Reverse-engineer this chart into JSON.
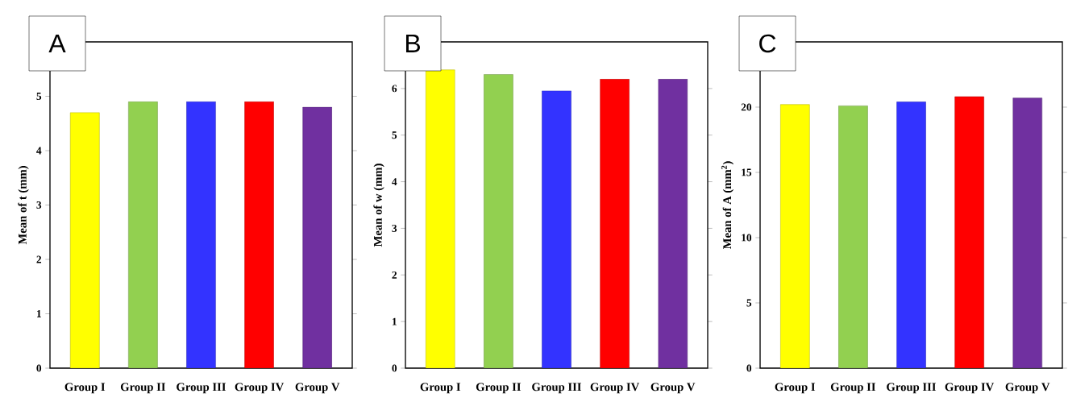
{
  "chart_data": [
    {
      "type": "bar",
      "title": "A",
      "ylabel": "Mean of t (mm)",
      "categories": [
        "Group I",
        "Group II",
        "Group III",
        "Group IV",
        "Group V"
      ],
      "values": [
        4.7,
        4.9,
        4.9,
        4.9,
        4.8
      ],
      "colors": [
        "#ffff00",
        "#92d050",
        "#3333ff",
        "#ff0000",
        "#7030a0"
      ],
      "ylim": [
        0,
        6
      ],
      "yticks": [
        0,
        1,
        2,
        3,
        4,
        5
      ]
    },
    {
      "type": "bar",
      "title": "B",
      "ylabel": "Mean of w (mm)",
      "categories": [
        "Group I",
        "Group II",
        "Group III",
        "Group IV",
        "Group V"
      ],
      "values": [
        6.4,
        6.3,
        5.95,
        6.2,
        6.2
      ],
      "colors": [
        "#ffff00",
        "#92d050",
        "#3333ff",
        "#ff0000",
        "#7030a0"
      ],
      "ylim": [
        0,
        7
      ],
      "yticks": [
        0,
        1,
        2,
        3,
        4,
        5,
        6
      ]
    },
    {
      "type": "bar",
      "title": "C",
      "ylabel": "Mean of A (mm$^{2}$)",
      "categories": [
        "Group I",
        "Group II",
        "Group III",
        "Group IV",
        "Group V"
      ],
      "values": [
        20.2,
        20.1,
        20.4,
        20.8,
        20.7
      ],
      "colors": [
        "#ffff00",
        "#92d050",
        "#3333ff",
        "#ff0000",
        "#7030a0"
      ],
      "ylim": [
        0,
        25
      ],
      "yticks": [
        0,
        5,
        10,
        15,
        20
      ]
    }
  ]
}
